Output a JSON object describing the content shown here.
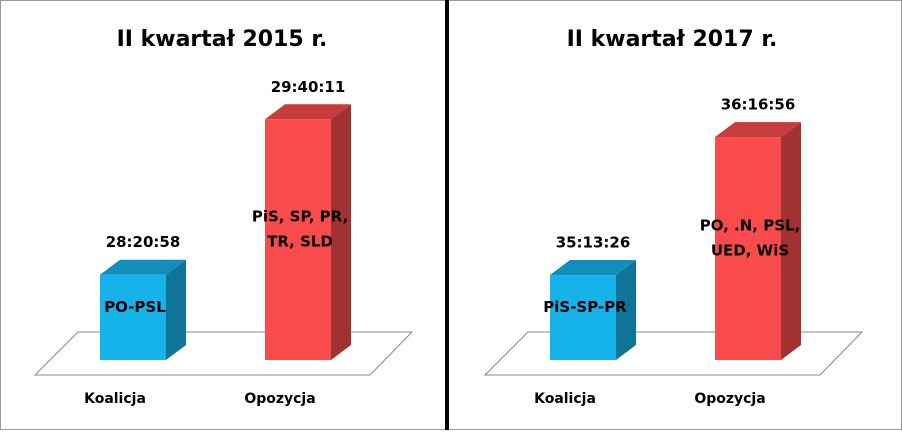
{
  "chart_data": [
    {
      "type": "bar3d",
      "title": "II kwartał 2015 r.",
      "categories": [
        "Koalicja",
        "Opozycja"
      ],
      "values": [
        102058,
        106811
      ],
      "value_labels": [
        "28:20:58",
        "29:40:11"
      ],
      "bar_labels": [
        [
          "PO-PSL"
        ],
        [
          "PiS, SP, PR,",
          "TR, SLD"
        ]
      ],
      "colors": [
        "#16b2ea",
        "#f94b4b"
      ],
      "ylim": [
        99450,
        107400
      ]
    },
    {
      "type": "bar3d",
      "title": "II kwartał 2017 r.",
      "categories": [
        "Koalicja",
        "Opozycja"
      ],
      "values": [
        126806,
        130616
      ],
      "value_labels": [
        "35:13:26",
        "36:16:56"
      ],
      "bar_labels": [
        [
          "PiS-SP-PR"
        ],
        [
          "PO, .N, PSL,",
          "UED, WiS"
        ]
      ],
      "colors": [
        "#16b2ea",
        "#f94b4b"
      ],
      "ylim": [
        124460,
        131640
      ]
    }
  ]
}
